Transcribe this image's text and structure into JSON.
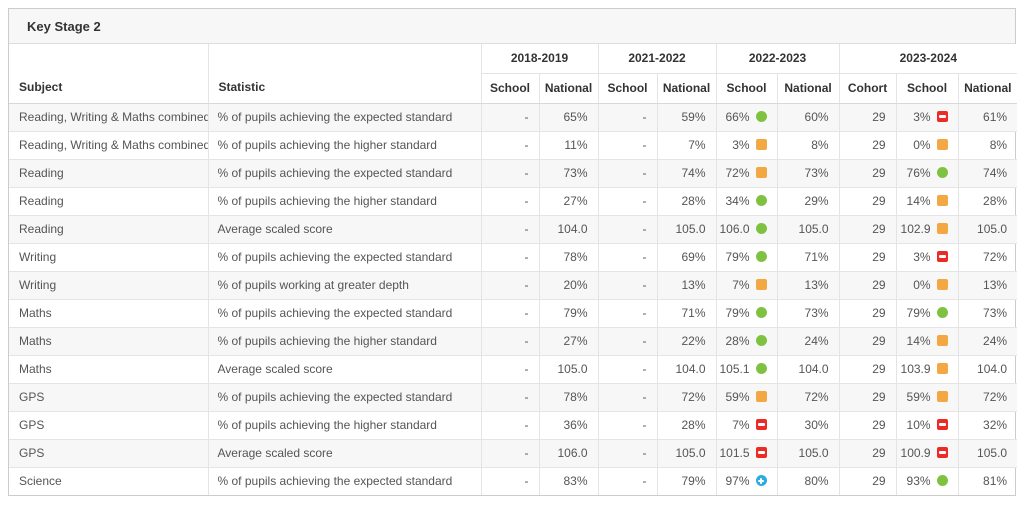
{
  "title": "Key Stage 2",
  "colors": {
    "green": "#7fc241",
    "orange": "#f4a843",
    "red": "#ee2a24",
    "blue": "#2aabe2"
  },
  "icon_legend": {
    "green-circle": "#7fc241",
    "orange-square": "#f4a843",
    "red-square-minus": "#ee2a24",
    "blue-circle-plus": "#2aabe2"
  },
  "table": {
    "subject_header": "Subject",
    "statistic_header": "Statistic",
    "year_groups": [
      {
        "label": "2018-2019",
        "columns": [
          "School",
          "National"
        ]
      },
      {
        "label": "2021-2022",
        "columns": [
          "School",
          "National"
        ]
      },
      {
        "label": "2022-2023",
        "columns": [
          "School",
          "National"
        ]
      },
      {
        "label": "2023-2024",
        "columns": [
          "Cohort",
          "School",
          "National"
        ]
      }
    ],
    "rows": [
      {
        "subject": "Reading, Writing & Maths combined",
        "statistic": "% of pupils achieving the expected standard",
        "values": [
          {
            "text": "-"
          },
          {
            "text": "65%"
          },
          {
            "text": "-"
          },
          {
            "text": "59%"
          },
          {
            "text": "66%",
            "icon": "green-circle"
          },
          {
            "text": "60%"
          },
          {
            "text": "29"
          },
          {
            "text": "3%",
            "icon": "red-square-minus"
          },
          {
            "text": "61%"
          }
        ]
      },
      {
        "subject": "Reading, Writing & Maths combined",
        "statistic": "% of pupils achieving the higher standard",
        "values": [
          {
            "text": "-"
          },
          {
            "text": "11%"
          },
          {
            "text": "-"
          },
          {
            "text": "7%"
          },
          {
            "text": "3%",
            "icon": "orange-square"
          },
          {
            "text": "8%"
          },
          {
            "text": "29"
          },
          {
            "text": "0%",
            "icon": "orange-square"
          },
          {
            "text": "8%"
          }
        ]
      },
      {
        "subject": "Reading",
        "statistic": "% of pupils achieving the expected standard",
        "values": [
          {
            "text": "-"
          },
          {
            "text": "73%"
          },
          {
            "text": "-"
          },
          {
            "text": "74%"
          },
          {
            "text": "72%",
            "icon": "orange-square"
          },
          {
            "text": "73%"
          },
          {
            "text": "29"
          },
          {
            "text": "76%",
            "icon": "green-circle"
          },
          {
            "text": "74%"
          }
        ]
      },
      {
        "subject": "Reading",
        "statistic": "% of pupils achieving the higher standard",
        "values": [
          {
            "text": "-"
          },
          {
            "text": "27%"
          },
          {
            "text": "-"
          },
          {
            "text": "28%"
          },
          {
            "text": "34%",
            "icon": "green-circle"
          },
          {
            "text": "29%"
          },
          {
            "text": "29"
          },
          {
            "text": "14%",
            "icon": "orange-square"
          },
          {
            "text": "28%"
          }
        ]
      },
      {
        "subject": "Reading",
        "statistic": "Average scaled score",
        "values": [
          {
            "text": "-"
          },
          {
            "text": "104.0"
          },
          {
            "text": "-"
          },
          {
            "text": "105.0"
          },
          {
            "text": "106.0",
            "icon": "green-circle"
          },
          {
            "text": "105.0"
          },
          {
            "text": "29"
          },
          {
            "text": "102.9",
            "icon": "orange-square"
          },
          {
            "text": "105.0"
          }
        ]
      },
      {
        "subject": "Writing",
        "statistic": "% of pupils achieving the expected standard",
        "values": [
          {
            "text": "-"
          },
          {
            "text": "78%"
          },
          {
            "text": "-"
          },
          {
            "text": "69%"
          },
          {
            "text": "79%",
            "icon": "green-circle"
          },
          {
            "text": "71%"
          },
          {
            "text": "29"
          },
          {
            "text": "3%",
            "icon": "red-square-minus"
          },
          {
            "text": "72%"
          }
        ]
      },
      {
        "subject": "Writing",
        "statistic": "% of pupils working at greater depth",
        "values": [
          {
            "text": "-"
          },
          {
            "text": "20%"
          },
          {
            "text": "-"
          },
          {
            "text": "13%"
          },
          {
            "text": "7%",
            "icon": "orange-square"
          },
          {
            "text": "13%"
          },
          {
            "text": "29"
          },
          {
            "text": "0%",
            "icon": "orange-square"
          },
          {
            "text": "13%"
          }
        ]
      },
      {
        "subject": "Maths",
        "statistic": "% of pupils achieving the expected standard",
        "values": [
          {
            "text": "-"
          },
          {
            "text": "79%"
          },
          {
            "text": "-"
          },
          {
            "text": "71%"
          },
          {
            "text": "79%",
            "icon": "green-circle"
          },
          {
            "text": "73%"
          },
          {
            "text": "29"
          },
          {
            "text": "79%",
            "icon": "green-circle"
          },
          {
            "text": "73%"
          }
        ]
      },
      {
        "subject": "Maths",
        "statistic": "% of pupils achieving the higher standard",
        "values": [
          {
            "text": "-"
          },
          {
            "text": "27%"
          },
          {
            "text": "-"
          },
          {
            "text": "22%"
          },
          {
            "text": "28%",
            "icon": "green-circle"
          },
          {
            "text": "24%"
          },
          {
            "text": "29"
          },
          {
            "text": "14%",
            "icon": "orange-square"
          },
          {
            "text": "24%"
          }
        ]
      },
      {
        "subject": "Maths",
        "statistic": "Average scaled score",
        "values": [
          {
            "text": "-"
          },
          {
            "text": "105.0"
          },
          {
            "text": "-"
          },
          {
            "text": "104.0"
          },
          {
            "text": "105.1",
            "icon": "green-circle"
          },
          {
            "text": "104.0"
          },
          {
            "text": "29"
          },
          {
            "text": "103.9",
            "icon": "orange-square"
          },
          {
            "text": "104.0"
          }
        ]
      },
      {
        "subject": "GPS",
        "statistic": "% of pupils achieving the expected standard",
        "values": [
          {
            "text": "-"
          },
          {
            "text": "78%"
          },
          {
            "text": "-"
          },
          {
            "text": "72%"
          },
          {
            "text": "59%",
            "icon": "orange-square"
          },
          {
            "text": "72%"
          },
          {
            "text": "29"
          },
          {
            "text": "59%",
            "icon": "orange-square"
          },
          {
            "text": "72%"
          }
        ]
      },
      {
        "subject": "GPS",
        "statistic": "% of pupils achieving the higher standard",
        "values": [
          {
            "text": "-"
          },
          {
            "text": "36%"
          },
          {
            "text": "-"
          },
          {
            "text": "28%"
          },
          {
            "text": "7%",
            "icon": "red-square-minus"
          },
          {
            "text": "30%"
          },
          {
            "text": "29"
          },
          {
            "text": "10%",
            "icon": "red-square-minus"
          },
          {
            "text": "32%"
          }
        ]
      },
      {
        "subject": "GPS",
        "statistic": "Average scaled score",
        "values": [
          {
            "text": "-"
          },
          {
            "text": "106.0"
          },
          {
            "text": "-"
          },
          {
            "text": "105.0"
          },
          {
            "text": "101.5",
            "icon": "red-square-minus"
          },
          {
            "text": "105.0"
          },
          {
            "text": "29"
          },
          {
            "text": "100.9",
            "icon": "red-square-minus"
          },
          {
            "text": "105.0"
          }
        ]
      },
      {
        "subject": "Science",
        "statistic": "% of pupils achieving the expected standard",
        "values": [
          {
            "text": "-"
          },
          {
            "text": "83%"
          },
          {
            "text": "-"
          },
          {
            "text": "79%"
          },
          {
            "text": "97%",
            "icon": "blue-circle-plus"
          },
          {
            "text": "80%"
          },
          {
            "text": "29"
          },
          {
            "text": "93%",
            "icon": "green-circle"
          },
          {
            "text": "81%"
          }
        ]
      }
    ]
  }
}
